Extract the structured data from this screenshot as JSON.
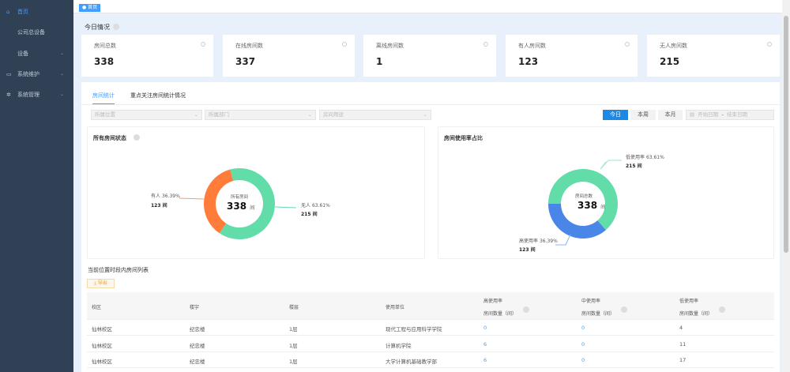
{
  "sidebar": {
    "items": [
      {
        "label": "首页",
        "icon": "home-icon"
      },
      {
        "label": "公司总设备"
      },
      {
        "label": "设备"
      },
      {
        "label": "系统维护",
        "icon": "monitor-icon"
      },
      {
        "label": "系统管理",
        "icon": "gear-icon"
      }
    ]
  },
  "tag": "首页",
  "today": {
    "title": "今日情况"
  },
  "cards": [
    {
      "label": "房间总数",
      "value": "338"
    },
    {
      "label": "在线房间数",
      "value": "337"
    },
    {
      "label": "离线房间数",
      "value": "1"
    },
    {
      "label": "有人房间数",
      "value": "123"
    },
    {
      "label": "无人房间数",
      "value": "215"
    }
  ],
  "tabs": [
    "房间统计",
    "重点关注房间统计情况"
  ],
  "filters": [
    "所属位置",
    "所属部门",
    "房间用途"
  ],
  "range": {
    "buttons": [
      "今日",
      "本周",
      "本月"
    ],
    "start": "开始日期",
    "sep": "-",
    "end": "结束日期"
  },
  "colors": {
    "accent": "#1e88e5",
    "orange": "#ff7c3a",
    "green": "#62ddaa",
    "blue": "#4a86e8"
  },
  "chart1": {
    "title": "所有房间状态",
    "center_label": "所有房间",
    "center_value": "338",
    "unit": "间",
    "slices": [
      {
        "name": "有人",
        "pct": "36.39%",
        "count": "123 间",
        "value": 123,
        "color": "#ff7c3a"
      },
      {
        "name": "无人",
        "pct": "63.61%",
        "count": "215 间",
        "value": 215,
        "color": "#62ddaa"
      }
    ]
  },
  "chart2": {
    "title": "房间使用率占比",
    "center_label": "房间总数",
    "center_value": "338",
    "unit": "间",
    "slices": [
      {
        "name": "低使用率",
        "pct": "63.61%",
        "count": "215 间",
        "value": 215,
        "color": "#62ddaa"
      },
      {
        "name": "高使用率",
        "pct": "36.39%",
        "count": "123 间",
        "value": 123,
        "color": "#4a86e8"
      }
    ]
  },
  "table": {
    "title": "当前位置时段内房间列表",
    "export": "导出",
    "headers": [
      "校区",
      "楼宇",
      "楼层",
      "使用单位",
      [
        "高使用率",
        "房间数量（间）"
      ],
      [
        "中使用率",
        "房间数量（间）"
      ],
      [
        "低使用率",
        "房间数量（间）"
      ]
    ],
    "rows": [
      [
        "仙林校区",
        "纪忠楼",
        "1层",
        "现代工程与应用科学学院",
        "0",
        "0",
        "4"
      ],
      [
        "仙林校区",
        "纪忠楼",
        "1层",
        "计算机学院",
        "6",
        "0",
        "11"
      ],
      [
        "仙林校区",
        "纪忠楼",
        "1层",
        "大学计算机基础教学部",
        "6",
        "0",
        "17"
      ]
    ]
  }
}
